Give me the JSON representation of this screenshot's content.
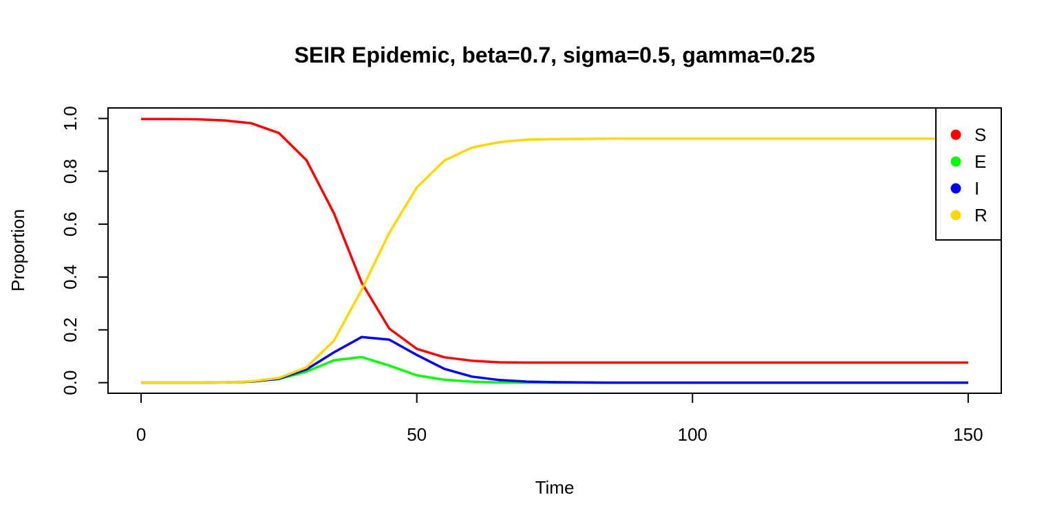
{
  "chart_data": {
    "type": "line",
    "title": "SEIR Epidemic, beta=0.7, sigma=0.5, gamma=0.25",
    "xlabel": "Time",
    "ylabel": "Proportion",
    "xlim": [
      -6,
      156
    ],
    "ylim": [
      -0.04,
      1.04
    ],
    "x_ticks": [
      "0",
      "50",
      "100",
      "150"
    ],
    "y_ticks": [
      "0.0",
      "0.2",
      "0.4",
      "0.6",
      "0.8",
      "1.0"
    ],
    "legend_position": "top-right",
    "grid": false,
    "x": [
      0,
      5,
      10,
      15,
      20,
      25,
      30,
      35,
      40,
      45,
      50,
      55,
      60,
      65,
      70,
      75,
      80,
      85,
      90,
      95,
      100,
      105,
      110,
      115,
      120,
      125,
      130,
      135,
      140,
      145,
      150
    ],
    "series": [
      {
        "name": "S",
        "color": "#ff0000",
        "values": [
          0.998,
          0.998,
          0.997,
          0.993,
          0.982,
          0.945,
          0.842,
          0.64,
          0.378,
          0.205,
          0.128,
          0.096,
          0.083,
          0.077,
          0.076,
          0.076,
          0.076,
          0.076,
          0.076,
          0.076,
          0.076,
          0.076,
          0.076,
          0.076,
          0.076,
          0.076,
          0.076,
          0.076,
          0.076,
          0.076,
          0.076
        ]
      },
      {
        "name": "E",
        "color": "#00ff00",
        "values": [
          0.0,
          0.0,
          0.0,
          0.001,
          0.004,
          0.014,
          0.042,
          0.085,
          0.097,
          0.065,
          0.028,
          0.011,
          0.004,
          0.001,
          0.0,
          0.0,
          0.0,
          0.0,
          0.0,
          0.0,
          0.0,
          0.0,
          0.0,
          0.0,
          0.0,
          0.0,
          0.0,
          0.0,
          0.0,
          0.0,
          0.0
        ]
      },
      {
        "name": "I",
        "color": "#0000ff",
        "values": [
          0.0,
          0.0,
          0.0,
          0.001,
          0.004,
          0.015,
          0.05,
          0.115,
          0.173,
          0.163,
          0.105,
          0.052,
          0.023,
          0.01,
          0.004,
          0.002,
          0.001,
          0.0,
          0.0,
          0.0,
          0.0,
          0.0,
          0.0,
          0.0,
          0.0,
          0.0,
          0.0,
          0.0,
          0.0,
          0.0,
          0.0
        ]
      },
      {
        "name": "R",
        "color": "#ffd700",
        "values": [
          0.0,
          0.0,
          0.0,
          0.001,
          0.005,
          0.018,
          0.058,
          0.16,
          0.352,
          0.567,
          0.739,
          0.841,
          0.89,
          0.911,
          0.92,
          0.922,
          0.923,
          0.924,
          0.924,
          0.924,
          0.924,
          0.924,
          0.924,
          0.924,
          0.924,
          0.924,
          0.924,
          0.924,
          0.924,
          0.924,
          0.924
        ]
      }
    ]
  }
}
